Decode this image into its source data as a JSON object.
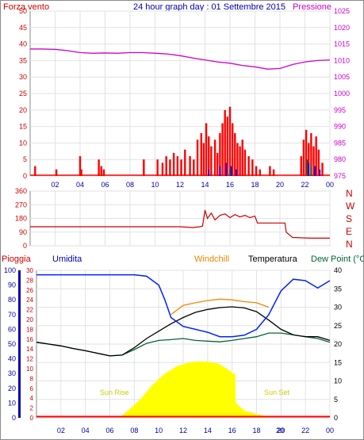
{
  "colors": {
    "background": "#ffffff",
    "frame": "#8a8a8a",
    "grid": "#e2e2e2",
    "axis_red": "#cc0000",
    "axis_blue": "#0000aa",
    "axis_magenta": "#cc00cc",
    "wind": "#ff0000",
    "gust": "#0000ff",
    "pressure": "#cc00cc",
    "direction": "#cc0000",
    "humidity": "#0022ff",
    "temperature": "#000000",
    "windchill": "#ee8800",
    "dewpoint": "#006633",
    "solar": "#ffff00",
    "rain": "#ff0000",
    "sun_text": "#cccc00"
  },
  "chart_data": [
    {
      "type": "line",
      "title": "24 hour graph day : 01 Settembre 2015",
      "left_axis_label": "Forza vento",
      "right_axis_label": "Pressione",
      "ylim_left": [
        0,
        50
      ],
      "left_ticks": [
        "50",
        "45",
        "40",
        "35",
        "30",
        "25",
        "20",
        "15",
        "10",
        "5",
        "0"
      ],
      "ylim_right": [
        975,
        1025
      ],
      "right_ticks": [
        "1025",
        "1020",
        "1015",
        "1010",
        "1005",
        "1000",
        "995",
        "990",
        "985",
        "980",
        "975"
      ],
      "x_ticks": [
        "02",
        "04",
        "06",
        "08",
        "10",
        "12",
        "14",
        "16",
        "18",
        "20",
        "22",
        "00"
      ],
      "pressure_series": {
        "x": [
          0,
          1,
          2,
          3,
          4,
          5,
          6,
          7,
          8,
          9,
          10,
          11,
          12,
          13,
          14,
          15,
          16,
          17,
          18,
          19,
          20,
          21,
          22,
          23,
          24
        ],
        "y": [
          1013.5,
          1013.5,
          1013.4,
          1013.0,
          1012.4,
          1012.2,
          1012.3,
          1012.2,
          1012.4,
          1012.4,
          1012.2,
          1012.0,
          1011.5,
          1010.8,
          1010.2,
          1009.6,
          1009.2,
          1008.5,
          1008.1,
          1007.4,
          1007.6,
          1008.8,
          1009.6,
          1010.0,
          1010.2
        ]
      },
      "wind_bursts": [
        {
          "x": 0.4,
          "y": 3
        },
        {
          "x": 2.1,
          "y": 2
        },
        {
          "x": 4.0,
          "y": 6
        },
        {
          "x": 4.1,
          "y": 2
        },
        {
          "x": 5.5,
          "y": 5
        },
        {
          "x": 5.7,
          "y": 3
        },
        {
          "x": 5.9,
          "y": 2
        },
        {
          "x": 9.1,
          "y": 5
        },
        {
          "x": 10.2,
          "y": 5
        },
        {
          "x": 10.6,
          "y": 4
        },
        {
          "x": 10.9,
          "y": 6
        },
        {
          "x": 11.2,
          "y": 5
        },
        {
          "x": 11.5,
          "y": 7
        },
        {
          "x": 11.8,
          "y": 6
        },
        {
          "x": 12.1,
          "y": 5
        },
        {
          "x": 12.4,
          "y": 8
        },
        {
          "x": 12.8,
          "y": 6
        },
        {
          "x": 13.1,
          "y": 5
        },
        {
          "x": 13.4,
          "y": 11
        },
        {
          "x": 13.7,
          "y": 13
        },
        {
          "x": 13.9,
          "y": 10
        },
        {
          "x": 14.1,
          "y": 16
        },
        {
          "x": 14.3,
          "y": 12
        },
        {
          "x": 14.5,
          "y": 9
        },
        {
          "x": 14.8,
          "y": 11
        },
        {
          "x": 15.0,
          "y": 7
        },
        {
          "x": 15.2,
          "y": 13
        },
        {
          "x": 15.4,
          "y": 16
        },
        {
          "x": 15.6,
          "y": 20
        },
        {
          "x": 15.8,
          "y": 18
        },
        {
          "x": 16.0,
          "y": 21
        },
        {
          "x": 16.2,
          "y": 16
        },
        {
          "x": 16.4,
          "y": 13
        },
        {
          "x": 16.6,
          "y": 10
        },
        {
          "x": 16.8,
          "y": 9
        },
        {
          "x": 17.0,
          "y": 11
        },
        {
          "x": 17.2,
          "y": 8
        },
        {
          "x": 17.5,
          "y": 6
        },
        {
          "x": 17.8,
          "y": 5
        },
        {
          "x": 18.1,
          "y": 3
        },
        {
          "x": 18.4,
          "y": 2
        },
        {
          "x": 19.2,
          "y": 3
        },
        {
          "x": 19.5,
          "y": 2
        },
        {
          "x": 21.7,
          "y": 6
        },
        {
          "x": 21.9,
          "y": 11
        },
        {
          "x": 22.1,
          "y": 14
        },
        {
          "x": 22.3,
          "y": 10
        },
        {
          "x": 22.5,
          "y": 13
        },
        {
          "x": 22.7,
          "y": 9
        },
        {
          "x": 22.9,
          "y": 12
        },
        {
          "x": 23.1,
          "y": 8
        },
        {
          "x": 23.4,
          "y": 4
        }
      ],
      "gust_bursts": [
        {
          "x": 14.3,
          "y": 2
        },
        {
          "x": 15.2,
          "y": 3
        },
        {
          "x": 15.7,
          "y": 4
        },
        {
          "x": 16.1,
          "y": 3
        },
        {
          "x": 16.5,
          "y": 2
        },
        {
          "x": 22.3,
          "y": 4
        },
        {
          "x": 22.8,
          "y": 3
        },
        {
          "x": 23.2,
          "y": 2
        }
      ],
      "dewpoint_marks": [
        {
          "x": 16.0,
          "y": 2
        },
        {
          "x": 22.2,
          "y": 5
        },
        {
          "x": 22.5,
          "y": 3
        }
      ]
    },
    {
      "type": "line",
      "ylim": [
        0,
        360
      ],
      "y_ticks": [
        "360",
        "270",
        "180",
        "90",
        "0"
      ],
      "direction_labels": [
        "N",
        "W",
        "S",
        "E",
        "N"
      ],
      "direction_series": {
        "x": [
          0,
          12.0,
          13.0,
          13.6,
          13.8,
          14.0,
          14.2,
          14.5,
          14.8,
          15.2,
          15.6,
          16.0,
          16.4,
          16.8,
          17.2,
          17.6,
          18.0,
          18.2,
          19.0,
          20.4,
          20.5,
          21.0,
          22.5,
          23.0,
          24
        ],
        "y": [
          125,
          125,
          120,
          125,
          130,
          235,
          180,
          215,
          170,
          200,
          210,
          185,
          205,
          190,
          200,
          185,
          195,
          150,
          150,
          150,
          90,
          55,
          50,
          50,
          50
        ]
      }
    },
    {
      "type": "line",
      "labels": {
        "rain": "Pioggia",
        "humidity": "Umidita",
        "windchill": "Windchill",
        "temperature": "Temperatura",
        "dewpoint": "Dew Point (°C"
      },
      "humidity_ylim": [
        0,
        100
      ],
      "humidity_ticks": [
        "100",
        "90",
        "80",
        "70",
        "60",
        "50",
        "40",
        "30",
        "20",
        "10",
        "0"
      ],
      "mid_ylim": [
        0,
        30
      ],
      "mid_ticks": [
        "30",
        "28",
        "26",
        "24",
        "22",
        "20",
        "18",
        "16",
        "14",
        "12",
        "10",
        "8",
        "6",
        "4",
        "2",
        "0"
      ],
      "temp_ylim": [
        0,
        40
      ],
      "temp_ticks": [
        "40",
        "35",
        "30",
        "25",
        "20",
        "15",
        "10",
        "5",
        "0"
      ],
      "x_ticks": [
        "02",
        "04",
        "06",
        "08",
        "10",
        "12",
        "14",
        "16",
        "18",
        "20",
        "22",
        "00"
      ],
      "sun_rise_label": "Sun Rise",
      "sun_set_label": "Sun Set",
      "x_extra_label": "20",
      "temperature_series": {
        "x": [
          0,
          1,
          2,
          3,
          4,
          5,
          6,
          7,
          8,
          9,
          10,
          11,
          12,
          13,
          14,
          15,
          16,
          17,
          18,
          19,
          20,
          21,
          22,
          23,
          24
        ],
        "y": [
          20.5,
          20.0,
          19.5,
          18.8,
          18.2,
          17.5,
          16.8,
          17.0,
          19.0,
          21.5,
          23.5,
          25.5,
          27.2,
          28.6,
          29.4,
          29.9,
          30.1,
          29.8,
          28.8,
          26.5,
          24.0,
          22.5,
          22.0,
          22.0,
          21.0
        ]
      },
      "windchill_series": {
        "x": [
          11.0,
          12.0,
          13.0,
          14.0,
          15.0,
          16.0,
          17.0,
          18.0,
          19.0
        ],
        "y": [
          28.0,
          30.5,
          31.2,
          31.8,
          32.2,
          32.0,
          31.5,
          31.2,
          30.0
        ]
      },
      "humidity_series": {
        "x": [
          0,
          2,
          4,
          6,
          7,
          8,
          9,
          10,
          10.5,
          11,
          12,
          13,
          14,
          15,
          16,
          17,
          18,
          19,
          20,
          21,
          22,
          23,
          24
        ],
        "y": [
          97,
          97,
          97,
          97,
          97,
          97,
          96,
          90,
          80,
          68,
          62,
          60,
          58,
          55,
          55,
          56,
          60,
          70,
          86,
          94,
          93,
          88,
          93
        ]
      },
      "dewpoint_series": {
        "x": [
          0,
          1,
          2,
          3,
          4,
          5,
          6,
          7,
          8,
          9,
          10,
          11,
          12,
          13,
          14,
          15,
          16,
          17,
          18,
          19,
          20,
          21,
          22,
          23,
          24
        ],
        "y": [
          20.5,
          20.0,
          19.5,
          18.8,
          18.2,
          17.5,
          16.8,
          17.0,
          18.5,
          20.2,
          21.0,
          21.2,
          21.5,
          21.0,
          20.8,
          20.6,
          21.0,
          21.5,
          22.0,
          23.0,
          23.0,
          22.5,
          22.0,
          21.5,
          20.5
        ]
      },
      "solar_series": {
        "x": [
          6.8,
          7.5,
          8.5,
          9.5,
          10.5,
          11.5,
          12.5,
          13.2,
          14.0,
          14.8,
          15.5,
          16.1,
          16.25,
          16.3,
          17.0,
          18.0,
          18.7,
          19.0
        ],
        "y": [
          0,
          2,
          5,
          9,
          12,
          14,
          15,
          15.3,
          15.2,
          14.8,
          13.5,
          12.0,
          12.0,
          4.0,
          2.0,
          1.0,
          0.5,
          0
        ]
      }
    }
  ]
}
